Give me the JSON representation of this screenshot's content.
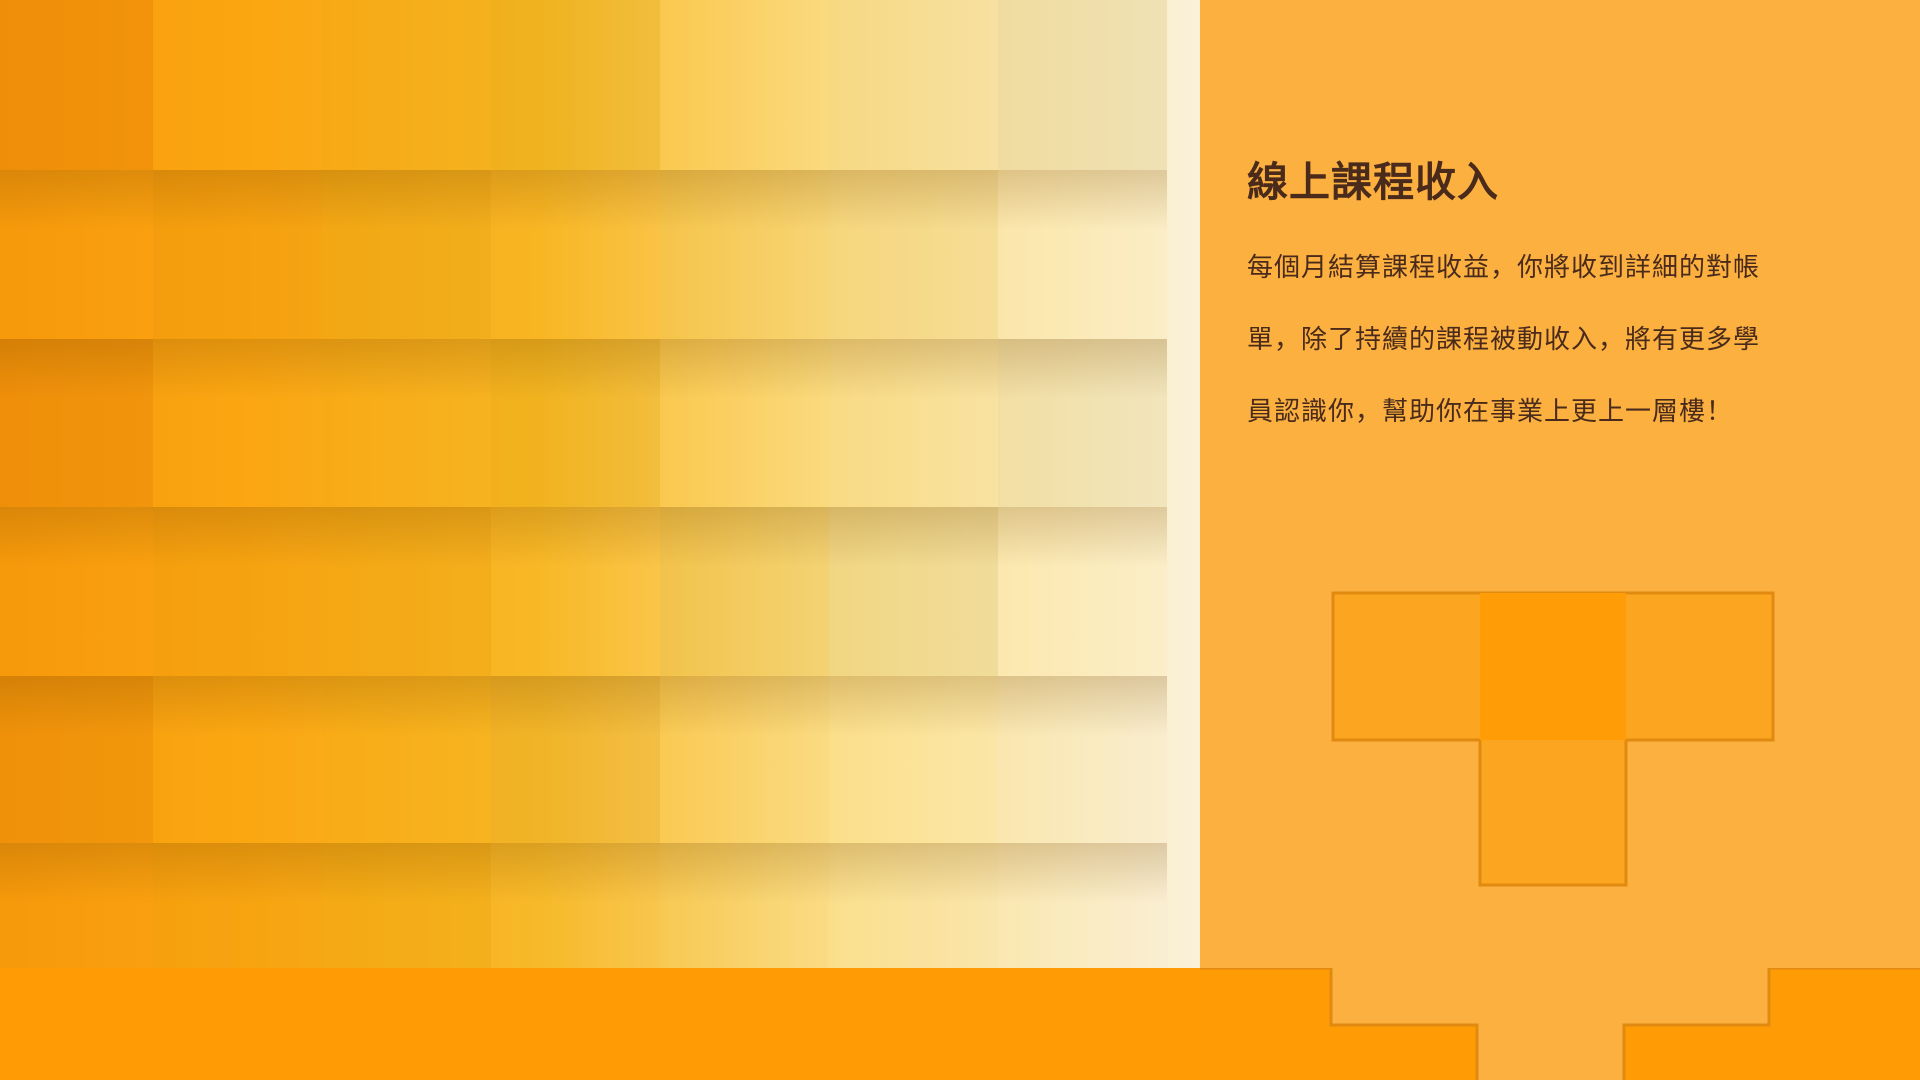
{
  "slide": {
    "title": "線上課程收入",
    "body": "每個月結算課程收益，你將收到詳細的對帳單，除了持續的課程被動收入，將有更多學員認識你，幫助你在事業上更上一層樓！"
  },
  "colors": {
    "panel": "#FBB040",
    "band": "#FF9B05",
    "text": "#4A2A1A",
    "t_shape": "#FCA521",
    "t_shape_center": "#FF9C06",
    "t_outline": "#E08A10"
  },
  "decor": {
    "background_image": "yellow-orange-checker-pattern",
    "shape": "t-block-shape"
  }
}
